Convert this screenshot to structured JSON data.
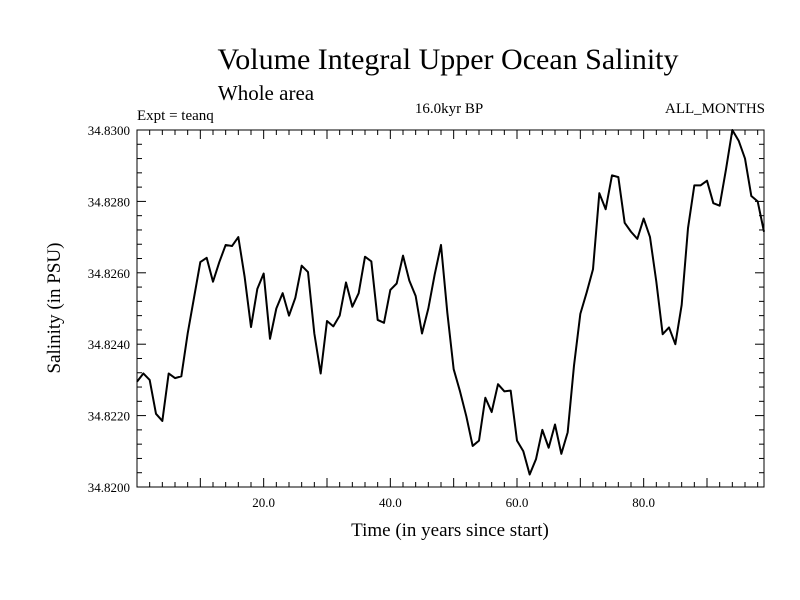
{
  "chart_data": {
    "type": "line",
    "title": "Volume Integral Upper Ocean Salinity",
    "subtitle": "Whole area",
    "annotations": {
      "experiment": "Expt = teanq",
      "period": "16.0kyr BP",
      "months": "ALL_MONTHS"
    },
    "xlabel": "Time (in years since start)",
    "ylabel": "Salinity (in PSU)",
    "xlim": [
      0,
      99
    ],
    "ylim": [
      34.82,
      34.83
    ],
    "grid": false,
    "x_ticks": [
      20,
      40,
      60,
      80
    ],
    "x_tick_labels": [
      "20.0",
      "40.0",
      "60.0",
      "80.0"
    ],
    "y_ticks": [
      34.82,
      34.822,
      34.824,
      34.826,
      34.828,
      34.83
    ],
    "y_tick_labels": [
      "34.8200",
      "34.8220",
      "34.8240",
      "34.8260",
      "34.8280",
      "34.8300"
    ],
    "series": [
      {
        "name": "Salinity",
        "x": [
          0,
          1,
          2,
          3,
          4,
          5,
          6,
          7,
          8,
          9,
          10,
          11,
          12,
          13,
          14,
          15,
          16,
          17,
          18,
          19,
          20,
          21,
          22,
          23,
          24,
          25,
          26,
          27,
          28,
          29,
          30,
          31,
          32,
          33,
          34,
          35,
          36,
          37,
          38,
          39,
          40,
          41,
          42,
          43,
          44,
          45,
          46,
          47,
          48,
          49,
          50,
          51,
          52,
          53,
          54,
          55,
          56,
          57,
          58,
          59,
          60,
          61,
          62,
          63,
          64,
          65,
          66,
          67,
          68,
          69,
          70,
          71,
          72,
          73,
          74,
          75,
          76,
          77,
          78,
          79,
          80,
          81,
          82,
          83,
          84,
          85,
          86,
          87,
          88,
          89,
          90,
          91,
          92,
          93,
          94,
          95,
          96,
          97,
          98,
          99
        ],
        "values": [
          34.82295,
          34.82318,
          34.823,
          34.82205,
          34.82185,
          34.82318,
          34.82305,
          34.8231,
          34.8243,
          34.8253,
          34.8263,
          34.82642,
          34.82575,
          34.8263,
          34.82678,
          34.82675,
          34.827,
          34.82588,
          34.82448,
          34.82555,
          34.82598,
          34.82415,
          34.825,
          34.82543,
          34.8248,
          34.8253,
          34.8262,
          34.82602,
          34.8243,
          34.82318,
          34.82465,
          34.8245,
          34.8248,
          34.82573,
          34.82505,
          34.82543,
          34.82645,
          34.82632,
          34.82468,
          34.8246,
          34.82552,
          34.8257,
          34.82648,
          34.82578,
          34.82535,
          34.8243,
          34.825,
          34.82595,
          34.82678,
          34.82488,
          34.8233,
          34.82268,
          34.82198,
          34.82115,
          34.8213,
          34.8225,
          34.8221,
          34.82288,
          34.82268,
          34.8227,
          34.8213,
          34.821,
          34.82035,
          34.82078,
          34.8216,
          34.8211,
          34.82175,
          34.82093,
          34.82153,
          34.8234,
          34.82485,
          34.82545,
          34.8261,
          34.82823,
          34.82778,
          34.82873,
          34.82868,
          34.8274,
          34.82715,
          34.82695,
          34.82752,
          34.827,
          34.82575,
          34.82428,
          34.82447,
          34.824,
          34.8251,
          34.82725,
          34.82845,
          34.82845,
          34.82858,
          34.82795,
          34.82788,
          34.8289,
          34.83,
          34.8297,
          34.8292,
          34.82815,
          34.828,
          34.82715
        ]
      }
    ]
  }
}
